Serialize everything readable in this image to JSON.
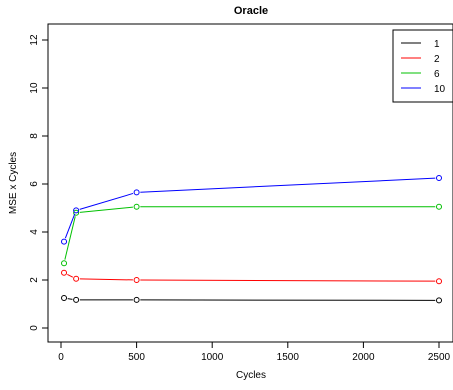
{
  "chart_data": {
    "type": "line",
    "title": "Oracle",
    "xlabel": "Cycles",
    "ylabel": "MSE x Cycles",
    "xlim": [
      0,
      2500
    ],
    "ylim": [
      0,
      12
    ],
    "x_ticks": [
      0,
      500,
      1000,
      1500,
      2000,
      2500
    ],
    "y_ticks": [
      0,
      2,
      4,
      6,
      8,
      10,
      12
    ],
    "x": [
      20,
      100,
      500,
      2500
    ],
    "grid": false,
    "legend_position": "top-right",
    "series": [
      {
        "name": "1",
        "color": "#000000",
        "values": [
          1.25,
          1.17,
          1.17,
          1.15
        ]
      },
      {
        "name": "2",
        "color": "#ff0000",
        "values": [
          2.3,
          2.05,
          2.0,
          1.95
        ]
      },
      {
        "name": "6",
        "color": "#00c000",
        "values": [
          2.7,
          4.8,
          5.05,
          5.05
        ]
      },
      {
        "name": "10",
        "color": "#0000ff",
        "values": [
          3.6,
          4.9,
          5.65,
          6.25
        ]
      }
    ]
  }
}
